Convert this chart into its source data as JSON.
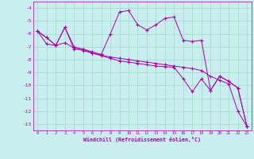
{
  "xlabel": "Windchill (Refroidissement éolien,°C)",
  "background_color": "#c8eef0",
  "grid_color": "#a0d8c8",
  "line_color": "#aa00aa",
  "xlim": [
    -0.5,
    23.5
  ],
  "ylim": [
    -13.5,
    -3.5
  ],
  "xticks": [
    0,
    1,
    2,
    3,
    4,
    5,
    6,
    7,
    8,
    9,
    10,
    11,
    12,
    13,
    14,
    15,
    16,
    17,
    18,
    19,
    20,
    21,
    22,
    23
  ],
  "yticks": [
    -13,
    -12,
    -11,
    -10,
    -9,
    -8,
    -7,
    -6,
    -5,
    -4
  ],
  "line1_x": [
    0,
    1,
    2,
    3,
    4,
    5,
    6,
    7,
    8,
    9,
    10,
    11,
    12,
    13,
    14,
    15,
    16,
    17,
    18,
    19,
    20,
    21,
    22,
    23
  ],
  "line1_y": [
    -5.8,
    -6.3,
    -6.9,
    -5.5,
    -7.2,
    -7.2,
    -7.4,
    -7.6,
    -6.0,
    -4.3,
    -4.2,
    -5.3,
    -5.7,
    -5.3,
    -4.8,
    -4.7,
    -6.5,
    -6.6,
    -6.5,
    -10.4,
    -9.3,
    -9.7,
    -10.2,
    -13.2
  ],
  "line2_x": [
    0,
    1,
    2,
    3,
    4,
    5,
    6,
    7,
    8,
    9,
    10,
    11,
    12,
    13,
    14,
    15,
    16,
    17,
    18,
    19,
    20,
    21,
    22,
    23
  ],
  "line2_y": [
    -5.8,
    -6.3,
    -6.9,
    -5.5,
    -7.0,
    -7.2,
    -7.5,
    -7.7,
    -7.9,
    -8.1,
    -8.2,
    -8.3,
    -8.4,
    -8.5,
    -8.55,
    -8.6,
    -9.5,
    -10.5,
    -9.5,
    -10.4,
    -9.3,
    -9.7,
    -10.2,
    -13.2
  ],
  "line3_x": [
    0,
    1,
    2,
    3,
    4,
    5,
    6,
    7,
    8,
    9,
    10,
    11,
    12,
    13,
    14,
    15,
    16,
    17,
    18,
    19,
    20,
    21,
    22,
    23
  ],
  "line3_y": [
    -5.8,
    -6.8,
    -6.9,
    -6.7,
    -7.1,
    -7.3,
    -7.5,
    -7.65,
    -7.8,
    -7.9,
    -8.0,
    -8.1,
    -8.2,
    -8.3,
    -8.4,
    -8.5,
    -8.6,
    -8.7,
    -8.85,
    -9.3,
    -9.6,
    -9.9,
    -12.0,
    -13.2
  ]
}
